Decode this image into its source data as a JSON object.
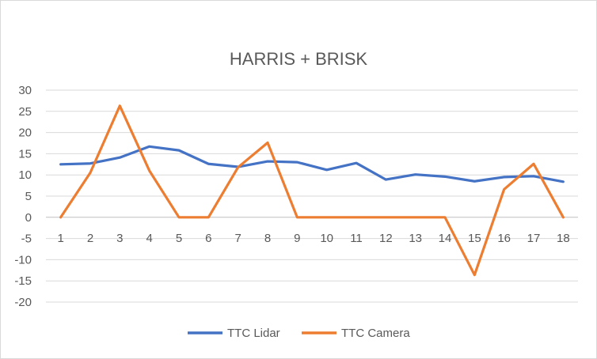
{
  "chart_data": {
    "type": "line",
    "title": "HARRIS + BRISK",
    "categories": [
      "1",
      "2",
      "3",
      "4",
      "5",
      "6",
      "7",
      "8",
      "9",
      "10",
      "11",
      "12",
      "13",
      "14",
      "15",
      "16",
      "17",
      "18"
    ],
    "ylim": [
      -20,
      30
    ],
    "yticks": [
      "30",
      "25",
      "20",
      "15",
      "10",
      "5",
      "0",
      "-5",
      "-10",
      "-15",
      "-20"
    ],
    "grid": true,
    "legend_position": "bottom",
    "series": [
      {
        "name": "TTC Lidar",
        "color": "#4472C4",
        "values": [
          12.5,
          12.7,
          14.1,
          16.7,
          15.8,
          12.6,
          11.9,
          13.2,
          13.0,
          11.2,
          12.8,
          8.9,
          10.1,
          9.6,
          8.5,
          9.5,
          9.7,
          8.4
        ]
      },
      {
        "name": "TTC Camera",
        "color": "#ED7D31",
        "values": [
          0,
          10.5,
          26.3,
          11.0,
          0,
          0,
          11.8,
          17.6,
          0,
          0,
          0,
          0,
          0,
          0,
          -13.6,
          6.6,
          12.6,
          0
        ]
      }
    ]
  }
}
